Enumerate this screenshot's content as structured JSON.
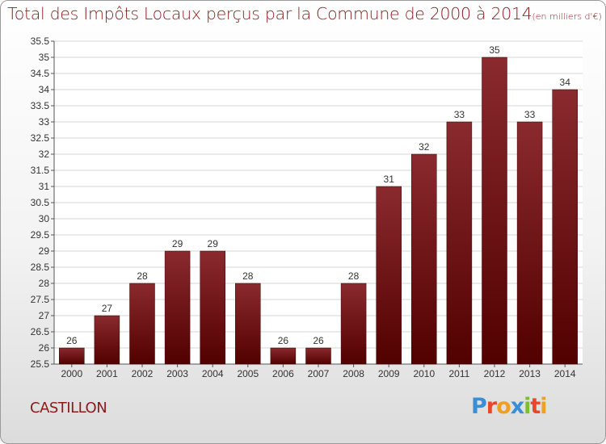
{
  "title": "Total des Impôts Locaux perçus par la Commune de 2000 à 2014",
  "unit": "(en milliers d'€)",
  "commune": "CASTILLON",
  "logo": "Proxiti",
  "colors": {
    "bar_top": "#8a2a2e",
    "bar_bottom": "#520000",
    "title": "#8b1a1a",
    "logo": [
      "#3a8ed6",
      "#e8482a",
      "#f0a020",
      "#3a8ed6",
      "#7bbf2a",
      "#e8482a",
      "#f0a020"
    ]
  },
  "chart_data": {
    "type": "bar",
    "categories": [
      "2000",
      "2001",
      "2002",
      "2003",
      "2004",
      "2005",
      "2006",
      "2007",
      "2008",
      "2009",
      "2010",
      "2011",
      "2012",
      "2013",
      "2014"
    ],
    "values": [
      26,
      27,
      28,
      29,
      29,
      28,
      26,
      26,
      28,
      31,
      32,
      33,
      35,
      33,
      34
    ],
    "ylim": [
      25.5,
      35.5
    ],
    "yticks": [
      "25.5",
      "26",
      "26.5",
      "27",
      "27.5",
      "28",
      "28.5",
      "29",
      "29.5",
      "30",
      "30.5",
      "31",
      "31.5",
      "32",
      "32.5",
      "33",
      "33.5",
      "34",
      "34.5",
      "35",
      "35.5"
    ],
    "grid": true,
    "xlabel": "",
    "ylabel": ""
  }
}
